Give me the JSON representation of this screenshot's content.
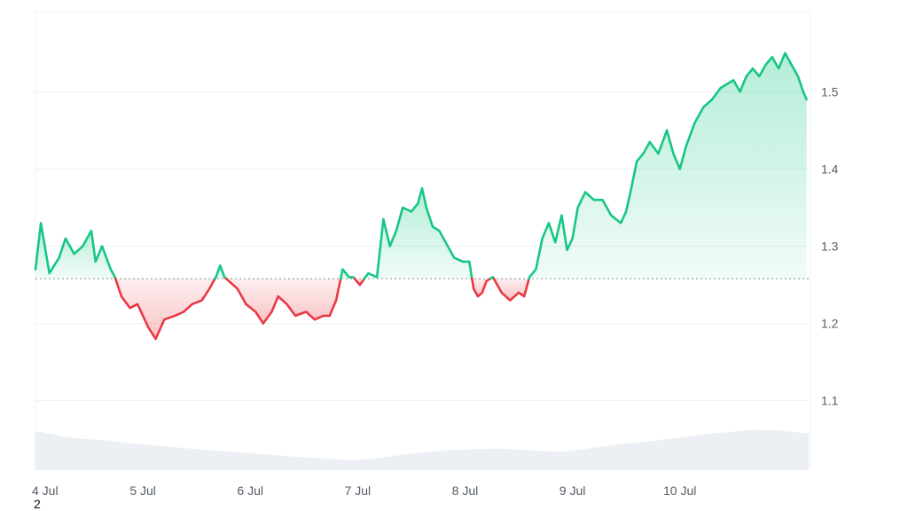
{
  "chart_data": {
    "type": "area",
    "baseline": 1.258,
    "ylim": [
      1.01,
      1.605
    ],
    "xlim": [
      0,
      7.2
    ],
    "y_ticks": [
      1.1,
      1.2,
      1.3,
      1.4,
      1.5
    ],
    "y_tick_labels": [
      "1.1",
      "1.2",
      "1.3",
      "1.4",
      "1.5"
    ],
    "x_ticks": [
      0,
      1,
      2,
      3,
      4,
      5,
      6
    ],
    "x_tick_labels": [
      "4 Jul",
      "5 Jul",
      "6 Jul",
      "7 Jul",
      "8 Jul",
      "9 Jul",
      "10 Jul"
    ],
    "grid": true,
    "colors": {
      "above": "#16c784",
      "below": "#ea3943",
      "above_fill": "#d6f5e6",
      "below_fill": "#fbd5d7",
      "volume": "#eceff3",
      "grid": "#eef0f3",
      "baseline": "#8a9099"
    },
    "series": [
      {
        "x": [
          0.0,
          0.05,
          0.13,
          0.22,
          0.28,
          0.36,
          0.44,
          0.52,
          0.56,
          0.62,
          0.7,
          0.74,
          0.8,
          0.88,
          0.95,
          1.05,
          1.12,
          1.2,
          1.3,
          1.38,
          1.46,
          1.55,
          1.62,
          1.68,
          1.72,
          1.76,
          1.8,
          1.88,
          1.96,
          2.05,
          2.12,
          2.2,
          2.26,
          2.34,
          2.42,
          2.52,
          2.6,
          2.68,
          2.74,
          2.8,
          2.86,
          2.92,
          2.96,
          3.02,
          3.1,
          3.18,
          3.24,
          3.3,
          3.36,
          3.42,
          3.5,
          3.56,
          3.6,
          3.64,
          3.7,
          3.76,
          3.82,
          3.9,
          3.98,
          4.04,
          4.08,
          4.12,
          4.16,
          4.2,
          4.26,
          4.34,
          4.42,
          4.5,
          4.55,
          4.6,
          4.66,
          4.72,
          4.78,
          4.84,
          4.9,
          4.95,
          5.0,
          5.05,
          5.12,
          5.2,
          5.28,
          5.36,
          5.45,
          5.5,
          5.54,
          5.6,
          5.66,
          5.72,
          5.8,
          5.88,
          5.94,
          6.0,
          6.06,
          6.14,
          6.22,
          6.3,
          6.38,
          6.44,
          6.5,
          6.56,
          6.62,
          6.68,
          6.74,
          6.8,
          6.86,
          6.92,
          6.98,
          7.04,
          7.1,
          7.15,
          7.18
        ],
        "y": [
          1.27,
          1.33,
          1.265,
          1.285,
          1.31,
          1.29,
          1.3,
          1.32,
          1.28,
          1.3,
          1.27,
          1.26,
          1.235,
          1.22,
          1.225,
          1.195,
          1.18,
          1.205,
          1.21,
          1.215,
          1.225,
          1.23,
          1.245,
          1.26,
          1.275,
          1.26,
          1.255,
          1.245,
          1.225,
          1.215,
          1.2,
          1.215,
          1.235,
          1.225,
          1.21,
          1.215,
          1.205,
          1.21,
          1.21,
          1.23,
          1.27,
          1.26,
          1.26,
          1.25,
          1.265,
          1.26,
          1.335,
          1.3,
          1.32,
          1.35,
          1.345,
          1.355,
          1.375,
          1.35,
          1.325,
          1.32,
          1.305,
          1.285,
          1.28,
          1.28,
          1.245,
          1.235,
          1.24,
          1.255,
          1.26,
          1.24,
          1.23,
          1.24,
          1.235,
          1.26,
          1.27,
          1.31,
          1.33,
          1.305,
          1.34,
          1.295,
          1.31,
          1.35,
          1.37,
          1.36,
          1.36,
          1.34,
          1.33,
          1.345,
          1.37,
          1.41,
          1.42,
          1.435,
          1.42,
          1.45,
          1.42,
          1.4,
          1.43,
          1.46,
          1.48,
          1.49,
          1.505,
          1.51,
          1.515,
          1.5,
          1.52,
          1.53,
          1.52,
          1.535,
          1.545,
          1.53,
          1.55,
          1.535,
          1.52,
          1.5,
          1.49
        ]
      }
    ],
    "volume": {
      "x": [
        0.0,
        0.15,
        0.3,
        0.5,
        0.7,
        0.9,
        1.1,
        1.3,
        1.5,
        1.7,
        1.9,
        2.1,
        2.3,
        2.5,
        2.7,
        2.9,
        3.1,
        3.3,
        3.5,
        3.7,
        3.9,
        4.1,
        4.3,
        4.5,
        4.7,
        4.9,
        5.1,
        5.3,
        5.5,
        5.7,
        5.9,
        6.1,
        6.3,
        6.5,
        6.7,
        6.9,
        7.1,
        7.2
      ],
      "y": [
        0.085,
        0.079,
        0.072,
        0.067,
        0.064,
        0.058,
        0.054,
        0.05,
        0.046,
        0.042,
        0.039,
        0.035,
        0.031,
        0.028,
        0.025,
        0.022,
        0.024,
        0.03,
        0.036,
        0.041,
        0.044,
        0.046,
        0.047,
        0.045,
        0.042,
        0.04,
        0.046,
        0.052,
        0.058,
        0.062,
        0.068,
        0.074,
        0.08,
        0.084,
        0.088,
        0.087,
        0.082,
        0.08
      ]
    }
  },
  "footer": {
    "corner_label": "2"
  }
}
